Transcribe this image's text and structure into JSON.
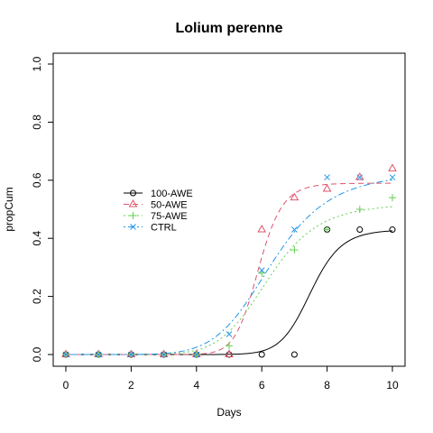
{
  "chart_data": {
    "type": "line",
    "title": "Lolium perenne",
    "xlabel": "Days",
    "ylabel": "propCum",
    "xlim": [
      0,
      10
    ],
    "ylim": [
      0,
      1
    ],
    "xticks": [
      "0",
      "2",
      "4",
      "6",
      "8",
      "10"
    ],
    "yticks": [
      "0.0",
      "0.2",
      "0.4",
      "0.6",
      "0.8",
      "1.0"
    ],
    "grid": false,
    "legend_position": "center-left",
    "series": [
      {
        "name": "100-AWE",
        "color": "#000000",
        "marker": "circle",
        "line_style": "solid",
        "x": [
          0,
          1,
          2,
          3,
          4,
          5,
          6,
          7,
          8,
          9,
          10
        ],
        "y": [
          0,
          0,
          0,
          0,
          0,
          0,
          0,
          0,
          0.43,
          0.43,
          0.43
        ],
        "fit": {
          "d": 0.43,
          "e": 7.5,
          "b": 16
        }
      },
      {
        "name": "50-AWE",
        "color": "#DF536B",
        "marker": "triangle",
        "line_style": "dashed",
        "x": [
          0,
          1,
          2,
          3,
          4,
          5,
          6,
          7,
          8,
          9,
          10
        ],
        "y": [
          0,
          0,
          0,
          0,
          0,
          0,
          0.43,
          0.54,
          0.57,
          0.61,
          0.64
        ],
        "fit": {
          "d": 0.59,
          "e": 5.9,
          "b": 16
        }
      },
      {
        "name": "75-AWE",
        "color": "#61D04F",
        "marker": "plus",
        "line_style": "dotted",
        "x": [
          0,
          1,
          2,
          3,
          4,
          5,
          6,
          7,
          8,
          9,
          10
        ],
        "y": [
          0,
          0,
          0,
          0,
          0,
          0.03,
          0.28,
          0.36,
          0.43,
          0.5,
          0.54
        ],
        "fit": {
          "d": 0.52,
          "e": 6.2,
          "b": 8
        }
      },
      {
        "name": "CTRL",
        "color": "#2297E6",
        "marker": "cross",
        "line_style": "dotdash",
        "x": [
          0,
          1,
          2,
          3,
          4,
          5,
          6,
          7,
          8,
          9,
          10
        ],
        "y": [
          0,
          0,
          0,
          0,
          0,
          0.07,
          0.29,
          0.43,
          0.61,
          0.61,
          0.61
        ],
        "fit": {
          "d": 0.625,
          "e": 6.3,
          "b": 7
        }
      }
    ]
  }
}
